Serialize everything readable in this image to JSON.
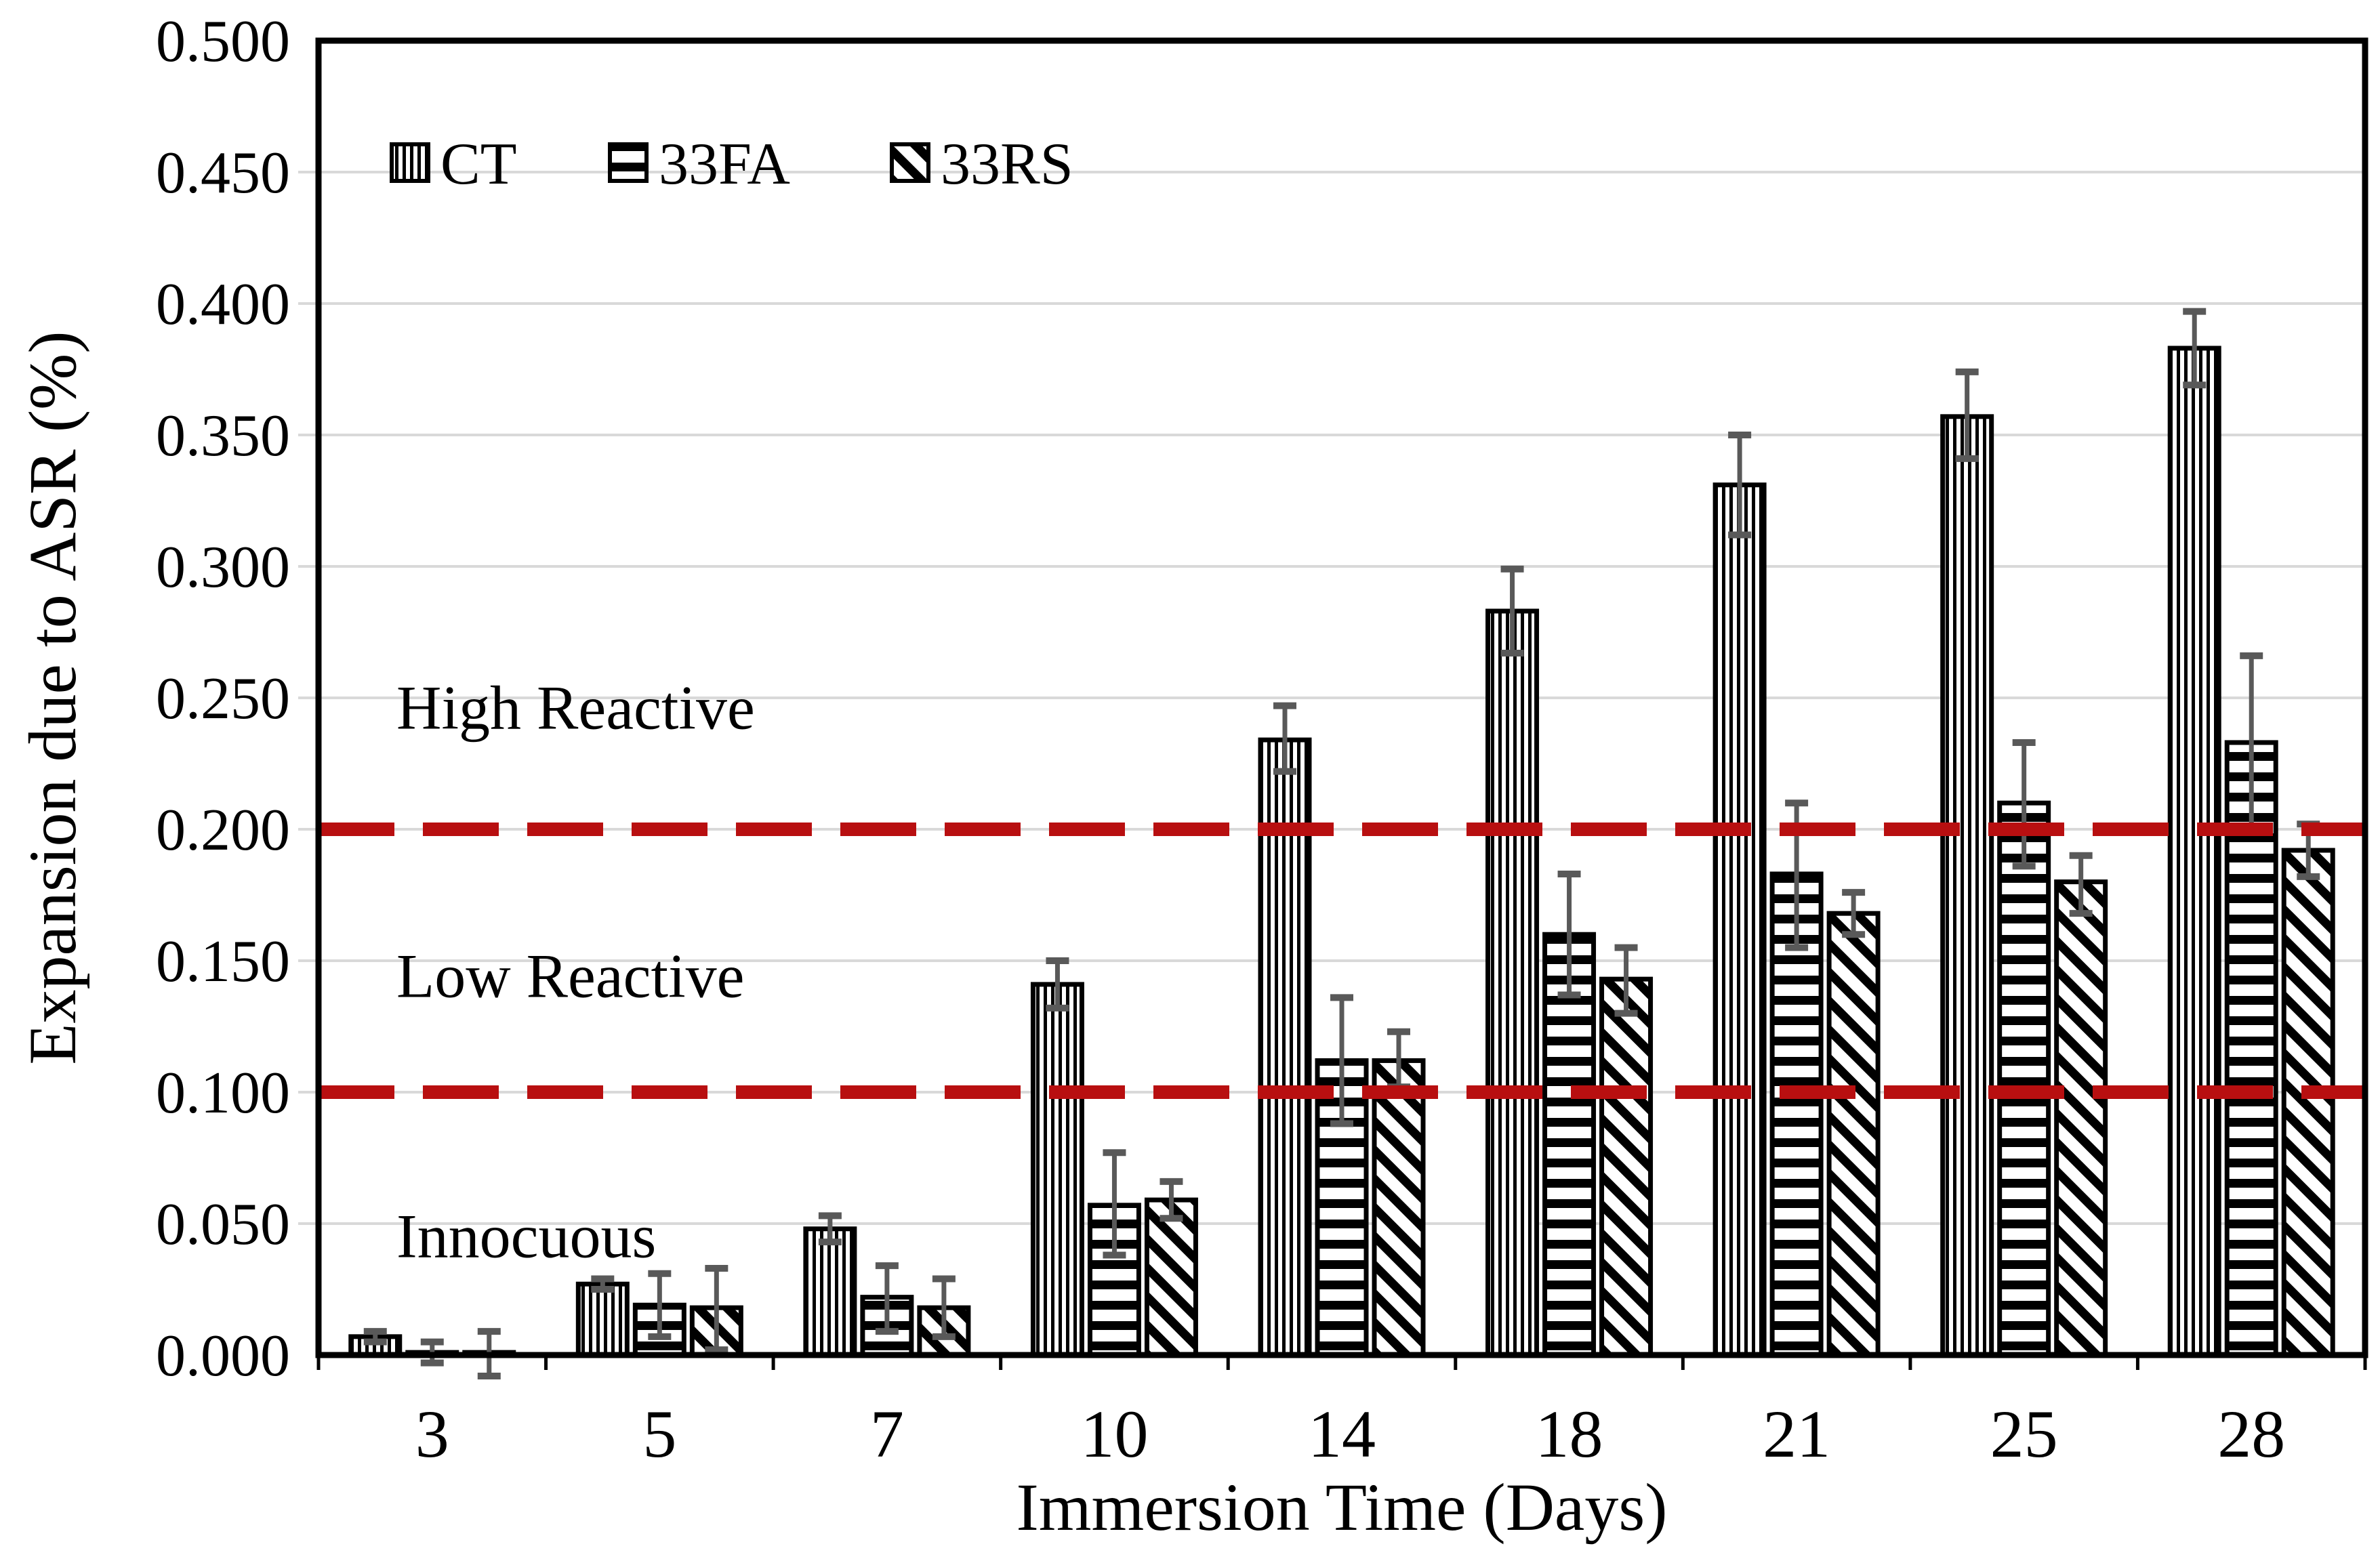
{
  "chart_data": {
    "type": "bar",
    "title": "",
    "xlabel": "Immersion Time (Days)",
    "ylabel": "Expansion due to ASR (%)",
    "categories": [
      "3",
      "5",
      "7",
      "10",
      "14",
      "18",
      "21",
      "25",
      "28"
    ],
    "series": [
      {
        "name": "CT",
        "pattern": "vertical-stripes",
        "values": [
          0.007,
          0.027,
          0.048,
          0.141,
          0.234,
          0.283,
          0.331,
          0.357,
          0.383
        ],
        "err_up": [
          0.002,
          0.002,
          0.005,
          0.009,
          0.013,
          0.016,
          0.019,
          0.017,
          0.014
        ],
        "err_down": [
          0.002,
          0.002,
          0.005,
          0.009,
          0.012,
          0.016,
          0.019,
          0.016,
          0.014
        ]
      },
      {
        "name": "33FA",
        "pattern": "horizontal-stripes",
        "values": [
          0.001,
          0.019,
          0.022,
          0.057,
          0.112,
          0.16,
          0.183,
          0.21,
          0.233
        ],
        "err_up": [
          0.004,
          0.012,
          0.012,
          0.02,
          0.024,
          0.023,
          0.027,
          0.023,
          0.033
        ],
        "err_down": [
          0.004,
          0.012,
          0.013,
          0.019,
          0.024,
          0.023,
          0.028,
          0.024,
          0.033
        ]
      },
      {
        "name": "33RS",
        "pattern": "diagonal-stripes",
        "values": [
          0.001,
          0.018,
          0.018,
          0.059,
          0.112,
          0.143,
          0.168,
          0.18,
          0.192
        ],
        "err_up": [
          0.008,
          0.015,
          0.011,
          0.007,
          0.011,
          0.012,
          0.008,
          0.01,
          0.01
        ],
        "err_down": [
          0.009,
          0.016,
          0.011,
          0.007,
          0.01,
          0.013,
          0.008,
          0.012,
          0.01
        ]
      }
    ],
    "ylim": [
      0,
      0.5
    ],
    "ytick_step": 0.05,
    "ytick_labels": [
      "0.000",
      "0.050",
      "0.100",
      "0.150",
      "0.200",
      "0.250",
      "0.300",
      "0.350",
      "0.400",
      "0.450",
      "0.500"
    ],
    "grid": true,
    "legend_position": "top-left-inside",
    "reference_lines": [
      {
        "value": 0.2,
        "style": "dashed",
        "color": "#b80f10"
      },
      {
        "value": 0.1,
        "style": "dashed",
        "color": "#b80f10"
      }
    ],
    "annotations": [
      {
        "text": "High Reactive",
        "y": 0.247
      },
      {
        "text": "Low Reactive",
        "y": 0.145
      },
      {
        "text": "Innocuous",
        "y": 0.046
      }
    ],
    "colors": {
      "background": "#ffffff",
      "bar_fill": "#ffffff",
      "bar_stroke": "#000000",
      "gridline": "#d9d9d9",
      "error_bar": "#595959",
      "reference_line": "#b80f10",
      "text": "#000000"
    }
  }
}
